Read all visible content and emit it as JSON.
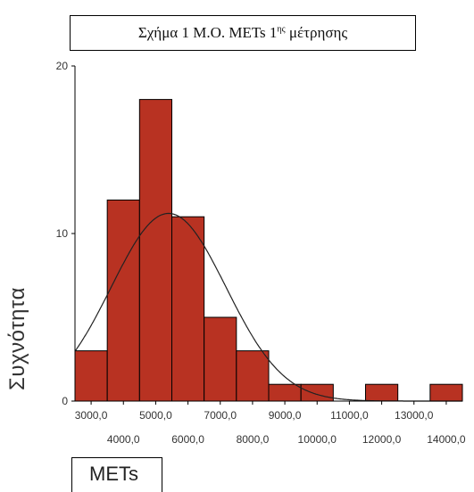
{
  "chart_data": {
    "type": "bar",
    "title_parts": {
      "prefix": "Σχήμα 1 Μ.Ο. METs 1",
      "sup": "ης",
      "suffix": " μέτρησης"
    },
    "xlabel": "METs",
    "ylabel": "Συχνότητα",
    "bin_edges": [
      2500,
      3500,
      4500,
      5500,
      6500,
      7500,
      8500,
      9500,
      10500,
      11500,
      12500,
      13500,
      14500
    ],
    "counts": [
      3,
      12,
      18,
      11,
      5,
      3,
      1,
      1,
      0,
      1,
      0,
      1
    ],
    "xlim": [
      2500,
      14500
    ],
    "ylim": [
      0,
      20
    ],
    "y_ticks": [
      "0",
      "10",
      "20"
    ],
    "x_ticks_upper": [
      "3000,0",
      "5000,0",
      "7000,0",
      "9000,0",
      "11000,0",
      "13000,0"
    ],
    "x_ticks_lower": [
      "4000,0",
      "6000,0",
      "8000,0",
      "10000,0",
      "12000,0",
      "14000,0"
    ],
    "normal_curve": {
      "mean": 5400,
      "std": 1780,
      "peak": 11.2
    },
    "bar_color": "#b83222",
    "grid": false
  }
}
